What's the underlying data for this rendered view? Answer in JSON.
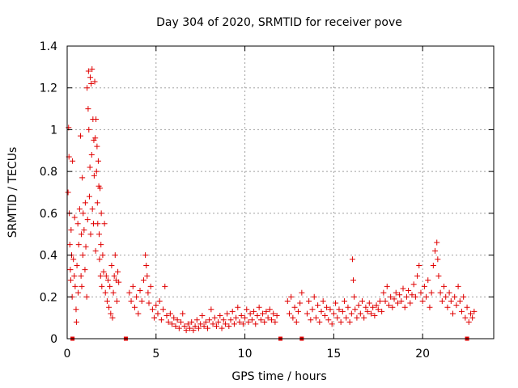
{
  "chart_data": {
    "type": "scatter",
    "title": "Day 304 of 2020, SRMTID for receiver pove",
    "xlabel": "GPS time / hours",
    "ylabel": "SRMTID / TECUs",
    "xlim": [
      0,
      24
    ],
    "ylim": [
      0,
      1.4
    ],
    "xticks": [
      0,
      5,
      10,
      15,
      20
    ],
    "xtick_labels": [
      "0",
      "5",
      "10",
      "15",
      "20"
    ],
    "yticks": [
      0,
      0.2,
      0.4,
      0.6,
      0.8,
      1.0,
      1.2,
      1.4
    ],
    "ytick_labels": [
      "0",
      "0.2",
      "0.4",
      "0.6",
      "0.8",
      "1",
      "1.2",
      "1.4"
    ],
    "grid": true,
    "marker": "plus",
    "color": "#e00000",
    "series": [
      {
        "name": "SRMTID",
        "points": [
          [
            0.05,
            0.7
          ],
          [
            0.08,
            1.01
          ],
          [
            0.1,
            0.87
          ],
          [
            0.12,
            0.6
          ],
          [
            0.15,
            0.45
          ],
          [
            0.18,
            0.33
          ],
          [
            0.2,
            0.28
          ],
          [
            0.22,
            0.52
          ],
          [
            0.25,
            0.4
          ],
          [
            0.28,
            0.2
          ],
          [
            0.3,
            0.85
          ],
          [
            0.35,
            0.38
          ],
          [
            0.4,
            0.3
          ],
          [
            0.42,
            0.58
          ],
          [
            0.45,
            0.25
          ],
          [
            0.5,
            0.14
          ],
          [
            0.52,
            0.08
          ],
          [
            0.55,
            0.35
          ],
          [
            0.6,
            0.55
          ],
          [
            0.62,
            0.22
          ],
          [
            0.65,
            0.45
          ],
          [
            0.7,
            0.62
          ],
          [
            0.75,
            0.97
          ],
          [
            0.78,
            0.3
          ],
          [
            0.8,
            0.5
          ],
          [
            0.82,
            0.25
          ],
          [
            0.85,
            0.77
          ],
          [
            0.88,
            0.4
          ],
          [
            0.9,
            0.6
          ],
          [
            0.95,
            0.52
          ],
          [
            1.0,
            0.33
          ],
          [
            1.02,
            0.65
          ],
          [
            1.05,
            0.44
          ],
          [
            1.1,
            0.2
          ],
          [
            1.12,
            1.2
          ],
          [
            1.15,
            0.57
          ],
          [
            1.18,
            1.1
          ],
          [
            1.2,
            1.28
          ],
          [
            1.22,
            1.0
          ],
          [
            1.25,
            0.68
          ],
          [
            1.28,
            0.82
          ],
          [
            1.3,
            1.25
          ],
          [
            1.32,
            0.5
          ],
          [
            1.35,
            1.22
          ],
          [
            1.38,
            0.88
          ],
          [
            1.4,
            1.29
          ],
          [
            1.42,
            0.62
          ],
          [
            1.45,
            1.05
          ],
          [
            1.48,
            0.55
          ],
          [
            1.5,
            0.95
          ],
          [
            1.52,
            0.78
          ],
          [
            1.55,
            1.23
          ],
          [
            1.58,
            0.96
          ],
          [
            1.6,
            0.42
          ],
          [
            1.62,
            1.05
          ],
          [
            1.65,
            0.8
          ],
          [
            1.68,
            0.92
          ],
          [
            1.7,
            0.65
          ],
          [
            1.72,
            0.55
          ],
          [
            1.75,
            0.85
          ],
          [
            1.78,
            0.73
          ],
          [
            1.8,
            0.5
          ],
          [
            1.82,
            0.38
          ],
          [
            1.85,
            0.72
          ],
          [
            1.88,
            0.3
          ],
          [
            1.9,
            0.45
          ],
          [
            1.92,
            0.6
          ],
          [
            1.95,
            0.25
          ],
          [
            2.0,
            0.4
          ],
          [
            2.05,
            0.32
          ],
          [
            2.1,
            0.55
          ],
          [
            2.15,
            0.22
          ],
          [
            2.2,
            0.3
          ],
          [
            2.25,
            0.18
          ],
          [
            2.3,
            0.28
          ],
          [
            2.35,
            0.15
          ],
          [
            2.4,
            0.25
          ],
          [
            2.45,
            0.12
          ],
          [
            2.5,
            0.35
          ],
          [
            2.55,
            0.1
          ],
          [
            2.6,
            0.22
          ],
          [
            2.65,
            0.3
          ],
          [
            2.7,
            0.4
          ],
          [
            2.75,
            0.28
          ],
          [
            2.8,
            0.18
          ],
          [
            2.85,
            0.32
          ],
          [
            2.9,
            0.27
          ],
          [
            3.5,
            0.22
          ],
          [
            3.6,
            0.18
          ],
          [
            3.7,
            0.25
          ],
          [
            3.8,
            0.15
          ],
          [
            3.9,
            0.2
          ],
          [
            4.0,
            0.12
          ],
          [
            4.1,
            0.23
          ],
          [
            4.2,
            0.18
          ],
          [
            4.3,
            0.28
          ],
          [
            4.4,
            0.4
          ],
          [
            4.45,
            0.35
          ],
          [
            4.5,
            0.3
          ],
          [
            4.55,
            0.22
          ],
          [
            4.6,
            0.17
          ],
          [
            4.7,
            0.25
          ],
          [
            4.8,
            0.14
          ],
          [
            4.9,
            0.1
          ],
          [
            5.0,
            0.16
          ],
          [
            5.1,
            0.12
          ],
          [
            5.2,
            0.18
          ],
          [
            5.3,
            0.09
          ],
          [
            5.4,
            0.14
          ],
          [
            5.5,
            0.25
          ],
          [
            5.6,
            0.11
          ],
          [
            5.7,
            0.08
          ],
          [
            5.8,
            0.12
          ],
          [
            5.9,
            0.07
          ],
          [
            6.0,
            0.1
          ],
          [
            6.1,
            0.06
          ],
          [
            6.2,
            0.09
          ],
          [
            6.3,
            0.05
          ],
          [
            6.4,
            0.08
          ],
          [
            6.5,
            0.12
          ],
          [
            6.6,
            0.06
          ],
          [
            6.7,
            0.04
          ],
          [
            6.8,
            0.07
          ],
          [
            6.9,
            0.05
          ],
          [
            7.0,
            0.08
          ],
          [
            7.1,
            0.04
          ],
          [
            7.2,
            0.06
          ],
          [
            7.3,
            0.09
          ],
          [
            7.4,
            0.05
          ],
          [
            7.5,
            0.07
          ],
          [
            7.6,
            0.11
          ],
          [
            7.7,
            0.06
          ],
          [
            7.8,
            0.08
          ],
          [
            7.9,
            0.05
          ],
          [
            8.0,
            0.09
          ],
          [
            8.1,
            0.14
          ],
          [
            8.2,
            0.07
          ],
          [
            8.3,
            0.1
          ],
          [
            8.4,
            0.06
          ],
          [
            8.5,
            0.08
          ],
          [
            8.6,
            0.11
          ],
          [
            8.7,
            0.05
          ],
          [
            8.8,
            0.09
          ],
          [
            8.9,
            0.07
          ],
          [
            9.0,
            0.12
          ],
          [
            9.1,
            0.06
          ],
          [
            9.2,
            0.09
          ],
          [
            9.3,
            0.13
          ],
          [
            9.4,
            0.07
          ],
          [
            9.5,
            0.1
          ],
          [
            9.6,
            0.15
          ],
          [
            9.7,
            0.08
          ],
          [
            9.8,
            0.11
          ],
          [
            9.9,
            0.07
          ],
          [
            10.0,
            0.1
          ],
          [
            10.1,
            0.14
          ],
          [
            10.2,
            0.08
          ],
          [
            10.3,
            0.12
          ],
          [
            10.4,
            0.09
          ],
          [
            10.5,
            0.13
          ],
          [
            10.6,
            0.07
          ],
          [
            10.7,
            0.11
          ],
          [
            10.8,
            0.15
          ],
          [
            10.9,
            0.09
          ],
          [
            11.0,
            0.12
          ],
          [
            11.1,
            0.08
          ],
          [
            11.2,
            0.13
          ],
          [
            11.3,
            0.1
          ],
          [
            11.4,
            0.14
          ],
          [
            11.5,
            0.09
          ],
          [
            11.6,
            0.12
          ],
          [
            11.7,
            0.08
          ],
          [
            11.8,
            0.11
          ],
          [
            12.4,
            0.18
          ],
          [
            12.5,
            0.12
          ],
          [
            12.6,
            0.2
          ],
          [
            12.7,
            0.1
          ],
          [
            12.8,
            0.15
          ],
          [
            12.9,
            0.08
          ],
          [
            13.0,
            0.13
          ],
          [
            13.1,
            0.17
          ],
          [
            13.2,
            0.22
          ],
          [
            13.5,
            0.12
          ],
          [
            13.6,
            0.18
          ],
          [
            13.7,
            0.09
          ],
          [
            13.8,
            0.14
          ],
          [
            13.9,
            0.2
          ],
          [
            14.0,
            0.1
          ],
          [
            14.1,
            0.16
          ],
          [
            14.2,
            0.08
          ],
          [
            14.3,
            0.13
          ],
          [
            14.4,
            0.18
          ],
          [
            14.5,
            0.11
          ],
          [
            14.6,
            0.15
          ],
          [
            14.7,
            0.09
          ],
          [
            14.8,
            0.14
          ],
          [
            14.9,
            0.07
          ],
          [
            15.0,
            0.12
          ],
          [
            15.1,
            0.17
          ],
          [
            15.2,
            0.1
          ],
          [
            15.3,
            0.14
          ],
          [
            15.4,
            0.08
          ],
          [
            15.5,
            0.13
          ],
          [
            15.6,
            0.18
          ],
          [
            15.7,
            0.1
          ],
          [
            15.8,
            0.15
          ],
          [
            15.9,
            0.08
          ],
          [
            16.0,
            0.12
          ],
          [
            16.05,
            0.38
          ],
          [
            16.1,
            0.28
          ],
          [
            16.15,
            0.2
          ],
          [
            16.2,
            0.14
          ],
          [
            16.3,
            0.1
          ],
          [
            16.4,
            0.16
          ],
          [
            16.5,
            0.12
          ],
          [
            16.6,
            0.18
          ],
          [
            16.7,
            0.1
          ],
          [
            16.8,
            0.15
          ],
          [
            16.9,
            0.13
          ],
          [
            17.0,
            0.17
          ],
          [
            17.1,
            0.12
          ],
          [
            17.2,
            0.15
          ],
          [
            17.3,
            0.11
          ],
          [
            17.4,
            0.16
          ],
          [
            17.5,
            0.14
          ],
          [
            17.6,
            0.18
          ],
          [
            17.7,
            0.13
          ],
          [
            17.8,
            0.22
          ],
          [
            17.9,
            0.18
          ],
          [
            18.0,
            0.25
          ],
          [
            18.1,
            0.16
          ],
          [
            18.2,
            0.2
          ],
          [
            18.3,
            0.15
          ],
          [
            18.4,
            0.19
          ],
          [
            18.5,
            0.22
          ],
          [
            18.6,
            0.17
          ],
          [
            18.7,
            0.21
          ],
          [
            18.8,
            0.18
          ],
          [
            18.9,
            0.24
          ],
          [
            19.0,
            0.15
          ],
          [
            19.1,
            0.2
          ],
          [
            19.2,
            0.23
          ],
          [
            19.3,
            0.17
          ],
          [
            19.4,
            0.21
          ],
          [
            19.5,
            0.26
          ],
          [
            19.6,
            0.2
          ],
          [
            19.7,
            0.3
          ],
          [
            19.8,
            0.35
          ],
          [
            19.9,
            0.22
          ],
          [
            20.0,
            0.18
          ],
          [
            20.1,
            0.25
          ],
          [
            20.2,
            0.2
          ],
          [
            20.3,
            0.28
          ],
          [
            20.4,
            0.15
          ],
          [
            20.5,
            0.22
          ],
          [
            20.6,
            0.35
          ],
          [
            20.7,
            0.42
          ],
          [
            20.8,
            0.46
          ],
          [
            20.85,
            0.38
          ],
          [
            20.9,
            0.3
          ],
          [
            21.0,
            0.22
          ],
          [
            21.1,
            0.18
          ],
          [
            21.2,
            0.25
          ],
          [
            21.3,
            0.2
          ],
          [
            21.4,
            0.15
          ],
          [
            21.5,
            0.22
          ],
          [
            21.6,
            0.18
          ],
          [
            21.7,
            0.12
          ],
          [
            21.8,
            0.2
          ],
          [
            21.9,
            0.16
          ],
          [
            22.0,
            0.25
          ],
          [
            22.1,
            0.18
          ],
          [
            22.2,
            0.13
          ],
          [
            22.3,
            0.2
          ],
          [
            22.4,
            0.1
          ],
          [
            22.5,
            0.15
          ],
          [
            22.6,
            0.08
          ],
          [
            22.7,
            0.12
          ],
          [
            22.8,
            0.1
          ],
          [
            22.9,
            0.13
          ]
        ]
      }
    ],
    "axis_markers": [
      0.3,
      3.3,
      12.0,
      13.2,
      22.5
    ]
  }
}
